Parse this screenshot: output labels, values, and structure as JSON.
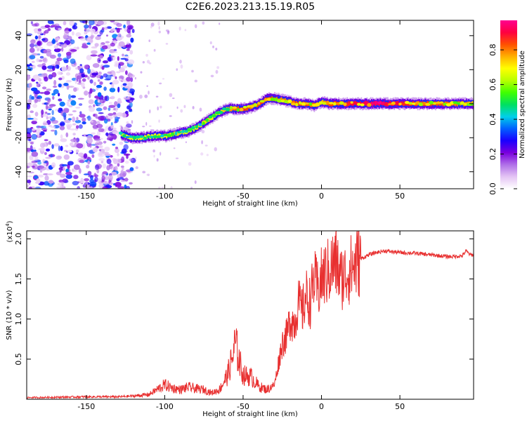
{
  "figure_title": "C2E6.2023.213.15.19.R05",
  "chart_data": [
    {
      "type": "heatmap",
      "title": "C2E6.2023.213.15.19.R05",
      "xlabel": "Height of straight line (km)",
      "ylabel": "Frequency (Hz)",
      "xlim": [
        -188,
        97
      ],
      "ylim": [
        -50,
        49
      ],
      "xticks": [
        -150,
        -100,
        -50,
        0,
        50
      ],
      "xtick_labels": [
        "-150",
        "-100",
        "-50",
        "0",
        "50"
      ],
      "yticks": [
        -40,
        -20,
        0,
        20,
        40
      ],
      "ytick_labels": [
        "-40",
        "-20",
        "0",
        "20",
        "40"
      ],
      "colorbar": {
        "label": "Normalized spectral amplitude",
        "range": [
          0,
          0.97
        ],
        "ticks": [
          0.0,
          0.2,
          0.4,
          0.6,
          0.8
        ],
        "tick_labels": [
          "0.0",
          "0.2",
          "0.4",
          "0.6",
          "0.8"
        ],
        "colormap": [
          "#ffffff",
          "#e4c4f4",
          "#b070e8",
          "#7a00dd",
          "#1a00ff",
          "#0060ff",
          "#00d0e8",
          "#00e060",
          "#40ff00",
          "#b8ff00",
          "#ffff00",
          "#ffb000",
          "#ff5000",
          "#ff0040",
          "#ff0090"
        ]
      },
      "noise_region_x": [
        -188,
        -125
      ],
      "ridge": {
        "x": [
          -128,
          -122,
          -115,
          -108,
          -100,
          -95,
          -90,
          -85,
          -80,
          -75,
          -70,
          -65,
          -60,
          -55,
          -50,
          -45,
          -40,
          -35,
          -30,
          -25,
          -20,
          -15,
          -10,
          -5,
          0,
          5,
          10,
          20,
          30,
          40,
          50,
          60,
          70,
          80,
          90,
          97
        ],
        "frequency": [
          -18,
          -20,
          -20,
          -19,
          -19,
          -18,
          -17,
          -16,
          -14,
          -11,
          -8,
          -5,
          -3,
          -3,
          -3,
          -2,
          0,
          3,
          3,
          2,
          1,
          0,
          0,
          -1,
          1,
          0,
          0,
          0,
          0,
          0,
          0,
          0,
          0,
          0,
          0,
          0
        ],
        "amplitude": [
          0.45,
          0.5,
          0.5,
          0.48,
          0.5,
          0.55,
          0.5,
          0.5,
          0.5,
          0.55,
          0.5,
          0.55,
          0.6,
          0.7,
          0.8,
          0.7,
          0.75,
          0.8,
          0.7,
          0.65,
          0.7,
          0.75,
          0.75,
          0.7,
          0.6,
          0.75,
          0.8,
          0.85,
          0.9,
          0.9,
          0.85,
          0.8,
          0.75,
          0.7,
          0.65,
          0.6
        ]
      }
    },
    {
      "type": "line",
      "xlabel": "Height of straight line (km)",
      "ylabel": "SNR (10 * v/v)",
      "y_multiplier": "(x10",
      "y_multiplier_exp": "4",
      "y_multiplier_close": ")",
      "xlim": [
        -188,
        97
      ],
      "ylim": [
        0,
        2.1
      ],
      "xticks": [
        -150,
        -100,
        -50,
        0,
        50
      ],
      "xtick_labels": [
        "-150",
        "-100",
        "-50",
        "0",
        "50"
      ],
      "yticks": [
        0.5,
        1.0,
        1.5,
        2.0
      ],
      "ytick_labels": [
        "0.5",
        "1.0",
        "1.5",
        "2.0"
      ],
      "color": "#e83030",
      "x": [
        -188,
        -150,
        -130,
        -120,
        -110,
        -105,
        -100,
        -95,
        -90,
        -85,
        -80,
        -75,
        -70,
        -65,
        -60,
        -57,
        -55,
        -52,
        -50,
        -45,
        -40,
        -35,
        -30,
        -27,
        -25,
        -22,
        -20,
        -17,
        -15,
        -12,
        -10,
        -7,
        -5,
        -2,
        0,
        2,
        5,
        8,
        10,
        12,
        15,
        20,
        25,
        30,
        35,
        40,
        50,
        60,
        70,
        80,
        85,
        90,
        92,
        95,
        97
      ],
      "values": [
        0.02,
        0.03,
        0.03,
        0.04,
        0.06,
        0.12,
        0.18,
        0.14,
        0.12,
        0.15,
        0.13,
        0.12,
        0.08,
        0.12,
        0.3,
        0.5,
        0.7,
        0.45,
        0.3,
        0.28,
        0.16,
        0.12,
        0.18,
        0.5,
        0.7,
        0.8,
        1.0,
        0.95,
        1.2,
        1.1,
        1.3,
        1.2,
        1.5,
        1.35,
        1.5,
        1.55,
        1.6,
        1.7,
        1.68,
        1.5,
        1.55,
        1.65,
        1.75,
        1.8,
        1.83,
        1.85,
        1.83,
        1.82,
        1.8,
        1.78,
        1.78,
        1.79,
        1.85,
        1.8,
        1.8
      ]
    }
  ]
}
